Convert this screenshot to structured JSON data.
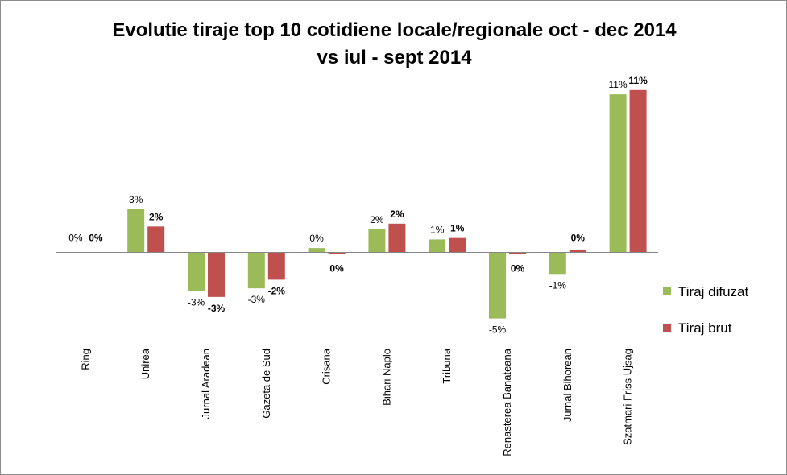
{
  "chart_data": {
    "type": "bar",
    "title": [
      "Evolutie tiraje top 10 cotidiene locale/regionale oct - dec 2014",
      "vs iul - sept 2014"
    ],
    "categories": [
      "Ring",
      "Unirea",
      "Jurnal Aradean",
      "Gazeta de Sud",
      "Crisana",
      "Bihari Naplo",
      "Tribuna",
      "Renasterea Banateana",
      "Jurnal Bihorean",
      "Szatmari Friss Ujsag"
    ],
    "series": [
      {
        "name": "Tiraj difuzat",
        "color": "#9bbb59",
        "values": [
          0.0,
          3.0,
          -2.7,
          -2.5,
          0.3,
          1.6,
          0.9,
          -4.6,
          -1.5,
          11.0
        ],
        "labels": [
          "0%",
          "3%",
          "-3%",
          "-3%",
          "0%",
          "2%",
          "1%",
          "-5%",
          "-1%",
          "11%"
        ]
      },
      {
        "name": "Tiraj brut",
        "color": "#c0504d",
        "values": [
          0.0,
          1.8,
          -3.1,
          -1.9,
          -0.1,
          2.0,
          1.0,
          -0.1,
          0.2,
          11.3
        ],
        "labels": [
          "0%",
          "2%",
          "-3%",
          "-2%",
          "0%",
          "2%",
          "1%",
          "0%",
          "0%",
          "11%"
        ]
      }
    ],
    "ylim": [
      -5,
      11.3
    ],
    "grid": false,
    "legend_position": "right",
    "xlabel": "",
    "ylabel": ""
  }
}
